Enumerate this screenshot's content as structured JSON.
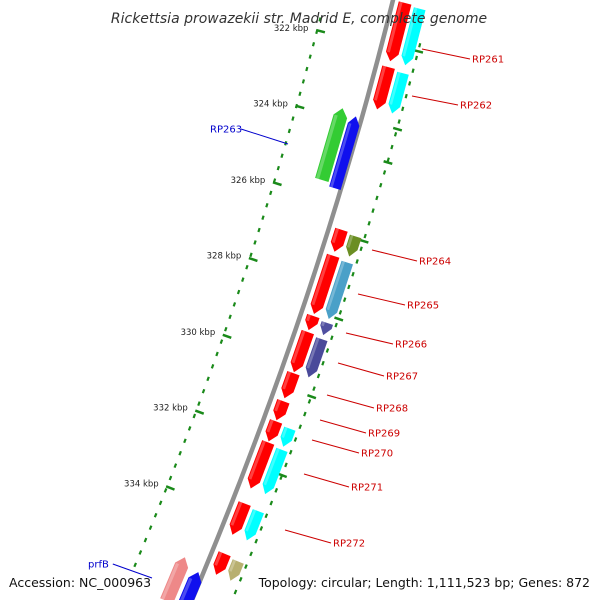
{
  "title": "Rickettsia prowazekii str. Madrid E, complete genome",
  "footer": {
    "accession": "Accession: NC_000963",
    "topology": "Topology: circular; Length: 1,111,523 bp; Genes: 872"
  },
  "colors": {
    "backbone": "#8f8f8f",
    "tick": "#1a8a1a",
    "forward_label": "#cc0000",
    "reverse_label": "#0000cc",
    "cds": "#ff0000",
    "rna": "#00ffff",
    "gc_reverse": "#1010ee",
    "gc_forward": "#33cc33"
  },
  "ticks": [
    {
      "label": "322 kbp"
    },
    {
      "label": "324 kbp"
    },
    {
      "label": "326 kbp"
    },
    {
      "label": "328 kbp"
    },
    {
      "label": "330 kbp"
    },
    {
      "label": "332 kbp"
    },
    {
      "label": "334 kbp"
    }
  ],
  "gene_labels": [
    {
      "name": "RP261",
      "strand": "forward"
    },
    {
      "name": "RP262",
      "strand": "forward"
    },
    {
      "name": "RP263",
      "strand": "reverse"
    },
    {
      "name": "RP264",
      "strand": "forward"
    },
    {
      "name": "RP265",
      "strand": "forward"
    },
    {
      "name": "RP266",
      "strand": "forward"
    },
    {
      "name": "RP267",
      "strand": "forward"
    },
    {
      "name": "RP268",
      "strand": "forward"
    },
    {
      "name": "RP269",
      "strand": "forward"
    },
    {
      "name": "RP270",
      "strand": "forward"
    },
    {
      "name": "RP271",
      "strand": "forward"
    },
    {
      "name": "RP272",
      "strand": "forward"
    },
    {
      "name": "prfB",
      "strand": "reverse"
    }
  ]
}
